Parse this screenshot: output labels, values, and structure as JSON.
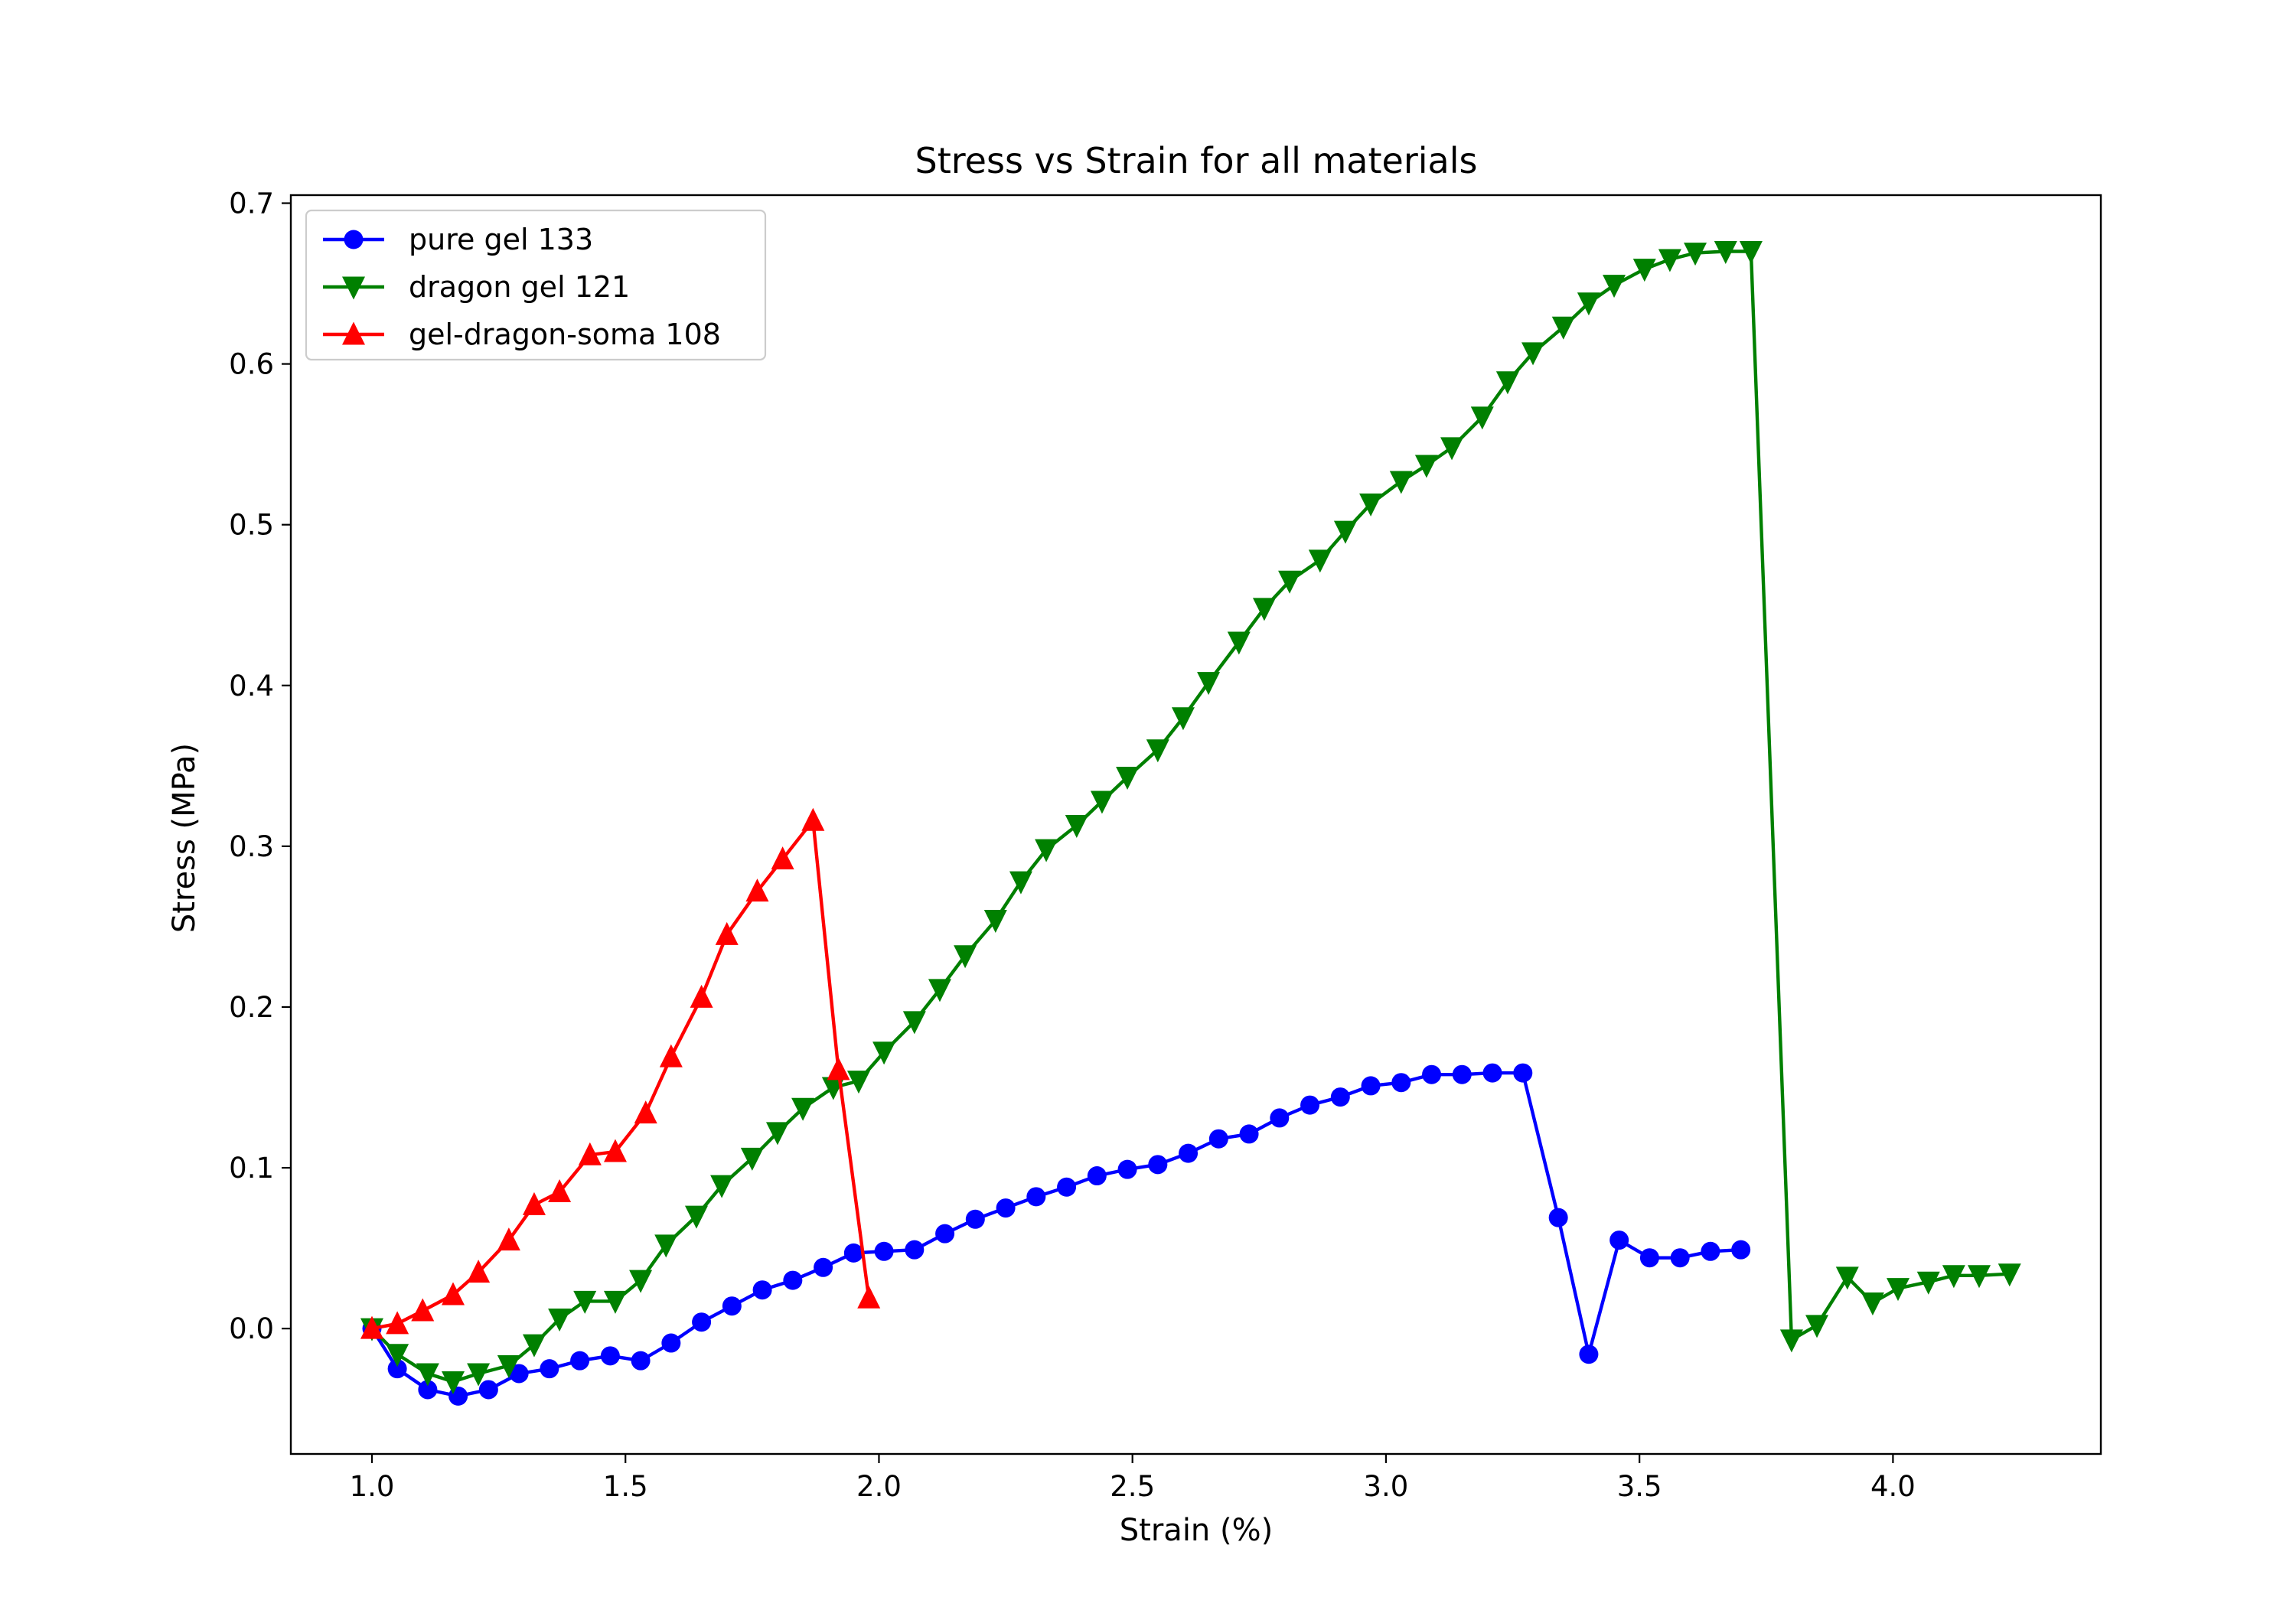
{
  "chart_data": {
    "type": "line",
    "title": "Stress vs Strain for all materials",
    "xlabel": "Strain (%)",
    "ylabel": "Stress (MPa)",
    "xlim": [
      0.84,
      4.41
    ],
    "ylim": [
      -0.078,
      0.705
    ],
    "xticks": [
      1.0,
      1.5,
      2.0,
      2.5,
      3.0,
      3.5,
      4.0
    ],
    "xtick_labels": [
      "1.0",
      "1.5",
      "2.0",
      "2.5",
      "3.0",
      "3.5",
      "4.0"
    ],
    "yticks": [
      0.0,
      0.1,
      0.2,
      0.3,
      0.4,
      0.5,
      0.6,
      0.7
    ],
    "ytick_labels": [
      "0.0",
      "0.1",
      "0.2",
      "0.3",
      "0.4",
      "0.5",
      "0.6",
      "0.7"
    ],
    "grid": false,
    "legend_position": "top-left",
    "series": [
      {
        "name": "pure gel 133",
        "color": "#0000ff",
        "marker": "circle",
        "x": [
          1.0,
          1.05,
          1.11,
          1.17,
          1.23,
          1.29,
          1.35,
          1.41,
          1.47,
          1.53,
          1.59,
          1.65,
          1.71,
          1.77,
          1.83,
          1.89,
          1.95,
          2.01,
          2.07,
          2.13,
          2.19,
          2.25,
          2.31,
          2.37,
          2.43,
          2.49,
          2.55,
          2.61,
          2.67,
          2.73,
          2.79,
          2.85,
          2.91,
          2.97,
          3.03,
          3.09,
          3.15,
          3.21,
          3.27,
          3.34,
          3.4,
          3.46,
          3.52,
          3.58,
          3.64,
          3.7
        ],
        "y": [
          0.0,
          -0.025,
          -0.038,
          -0.042,
          -0.038,
          -0.028,
          -0.025,
          -0.02,
          -0.017,
          -0.02,
          -0.009,
          0.004,
          0.014,
          0.024,
          0.03,
          0.038,
          0.047,
          0.048,
          0.049,
          0.059,
          0.068,
          0.075,
          0.082,
          0.088,
          0.095,
          0.099,
          0.102,
          0.109,
          0.118,
          0.121,
          0.131,
          0.139,
          0.144,
          0.151,
          0.153,
          0.158,
          0.158,
          0.159,
          0.159,
          0.069,
          -0.016,
          0.055,
          0.044,
          0.044,
          0.048,
          0.049
        ]
      },
      {
        "name": "dragon gel 121",
        "color": "#008000",
        "marker": "triangle-down",
        "x": [
          1.0,
          1.05,
          1.11,
          1.16,
          1.21,
          1.27,
          1.32,
          1.37,
          1.42,
          1.48,
          1.53,
          1.58,
          1.64,
          1.69,
          1.75,
          1.8,
          1.85,
          1.91,
          1.96,
          2.01,
          2.07,
          2.12,
          2.17,
          2.23,
          2.28,
          2.33,
          2.39,
          2.44,
          2.49,
          2.55,
          2.6,
          2.65,
          2.71,
          2.76,
          2.81,
          2.87,
          2.92,
          2.97,
          3.03,
          3.08,
          3.13,
          3.19,
          3.24,
          3.29,
          3.35,
          3.4,
          3.45,
          3.51,
          3.56,
          3.61,
          3.67,
          3.72,
          3.8,
          3.85,
          3.91,
          3.96,
          4.01,
          4.07,
          4.12,
          4.17,
          4.23
        ],
        "y": [
          0.0,
          -0.016,
          -0.028,
          -0.033,
          -0.028,
          -0.023,
          -0.01,
          0.006,
          0.017,
          0.017,
          0.03,
          0.052,
          0.07,
          0.089,
          0.106,
          0.122,
          0.137,
          0.15,
          0.154,
          0.172,
          0.191,
          0.211,
          0.232,
          0.254,
          0.278,
          0.298,
          0.313,
          0.328,
          0.343,
          0.36,
          0.38,
          0.402,
          0.427,
          0.448,
          0.465,
          0.478,
          0.496,
          0.513,
          0.527,
          0.537,
          0.548,
          0.567,
          0.589,
          0.607,
          0.623,
          0.638,
          0.649,
          0.659,
          0.665,
          0.669,
          0.67,
          0.67,
          -0.007,
          0.002,
          0.032,
          0.016,
          0.025,
          0.029,
          0.033,
          0.033,
          0.034
        ]
      },
      {
        "name": "gel-dragon-soma 108",
        "color": "#ff0000",
        "marker": "triangle-up",
        "x": [
          1.0,
          1.05,
          1.1,
          1.16,
          1.21,
          1.27,
          1.32,
          1.37,
          1.43,
          1.48,
          1.54,
          1.59,
          1.65,
          1.7,
          1.76,
          1.81,
          1.87,
          1.92,
          1.98
        ],
        "y": [
          0.0,
          0.003,
          0.011,
          0.021,
          0.035,
          0.055,
          0.077,
          0.085,
          0.108,
          0.11,
          0.134,
          0.169,
          0.206,
          0.245,
          0.272,
          0.292,
          0.316,
          0.161,
          0.019
        ]
      }
    ]
  }
}
